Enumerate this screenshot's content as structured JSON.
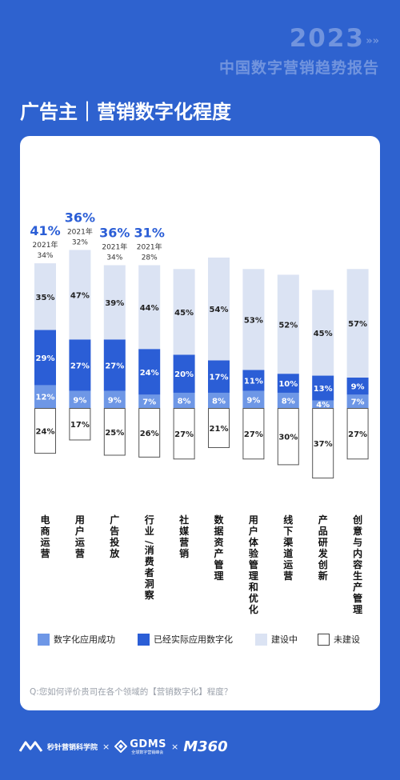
{
  "header": {
    "year": "2023",
    "arrows": "»»",
    "report_title": "中国数字营销趋势报告",
    "section_title": "广告主｜营销数字化程度"
  },
  "colors": {
    "background": "#2e62cf",
    "series_success": "#6e97e6",
    "series_applied": "#2b5ed6",
    "series_building": "#dbe3f3",
    "series_not_built": "#ffffff",
    "highlight_text": "#2b5ed6"
  },
  "chart_data": {
    "type": "bar",
    "stacked": true,
    "categories": [
      "电商运营",
      "用户运营",
      "广告投放",
      "行业/消费者洞察",
      "社媒营销",
      "数据资产管理",
      "用户体验管理和优化",
      "线下渠道运营",
      "产品研发创新",
      "创意与内容生产管理"
    ],
    "series": [
      {
        "name": "数字化应用成功",
        "values": [
          12,
          9,
          9,
          7,
          8,
          8,
          9,
          8,
          4,
          7
        ]
      },
      {
        "name": "已经实际应用数字化",
        "values": [
          29,
          27,
          27,
          24,
          20,
          17,
          11,
          10,
          13,
          9
        ]
      },
      {
        "name": "建设中",
        "values": [
          35,
          47,
          39,
          44,
          45,
          54,
          53,
          52,
          45,
          57
        ]
      },
      {
        "name": "未建设",
        "values": [
          24,
          17,
          25,
          26,
          27,
          21,
          27,
          30,
          37,
          27
        ]
      }
    ],
    "highlights": [
      {
        "category": "电商运营",
        "total": "41%",
        "prev_label": "2021年",
        "prev_value": "34%"
      },
      {
        "category": "用户运营",
        "total": "36%",
        "prev_label": "2021年",
        "prev_value": "32%"
      },
      {
        "category": "广告投放",
        "total": "36%",
        "prev_label": "2021年",
        "prev_value": "34%"
      },
      {
        "category": "行业/消费者洞察",
        "total": "31%",
        "prev_label": "2021年",
        "prev_value": "28%"
      }
    ],
    "unit": "%",
    "legend_position": "bottom"
  },
  "legend": [
    {
      "label": "数字化应用成功",
      "swatch": "#6e97e6",
      "border": "#6e97e6"
    },
    {
      "label": "已经实际应用数字化",
      "swatch": "#2b5ed6",
      "border": "#2b5ed6"
    },
    {
      "label": "建设中",
      "swatch": "#dbe3f3",
      "border": "#dbe3f3"
    },
    {
      "label": "未建设",
      "swatch": "#ffffff",
      "border": "#444444"
    }
  ],
  "question": "Q:您如何评价贵司在各个领域的【营销数字化】程度？",
  "footer": {
    "brand1": "秒针营销科学院",
    "sep": "×",
    "brand2": "GDMS",
    "brand2_sub": "全球数字营销峰会",
    "brand3": "M360"
  }
}
